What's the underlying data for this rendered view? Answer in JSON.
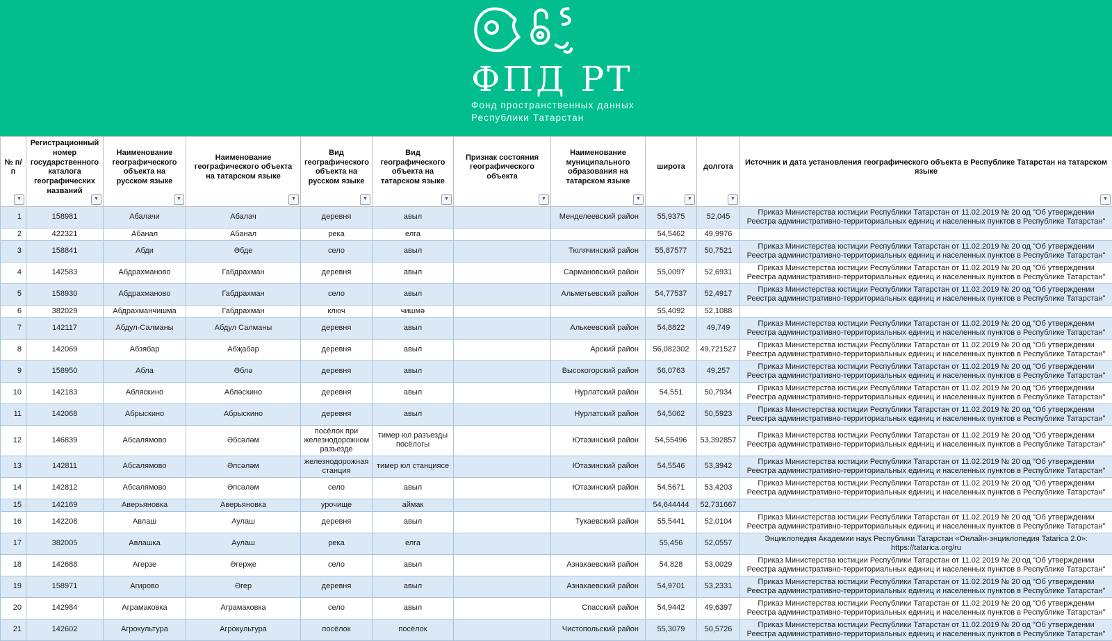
{
  "banner": {
    "background_color": "#02be8e",
    "logo_icon": "fpd-rt-logo",
    "title": "ФПД РТ",
    "subtitle_line1": "Фонд пространственных данных",
    "subtitle_line2": "Республики Татарстан"
  },
  "table": {
    "filter_icon": "▼",
    "banded_row_color": "#dbe8f6",
    "columns": [
      {
        "key": "num",
        "label": "№ п/п"
      },
      {
        "key": "reg-number",
        "label": "Регистрационный номер государственного каталога географических названий"
      },
      {
        "key": "name-ru",
        "label": "Наименование географического объекта на русском языке"
      },
      {
        "key": "name-tt",
        "label": "Наименование географического объекта на татарском языке"
      },
      {
        "key": "type-ru",
        "label": "Вид географического объекта на русском языке"
      },
      {
        "key": "type-tt",
        "label": "Вид географического объекта на татарском языке"
      },
      {
        "key": "status",
        "label": "Признак состояния географического объекта"
      },
      {
        "key": "municipality",
        "label": "Наименование муниципального образования на татарском языке"
      },
      {
        "key": "latitude",
        "label": "широта"
      },
      {
        "key": "longitude",
        "label": "долгота"
      },
      {
        "key": "source",
        "label": "Источник и дата установления географического объекта в Республике Татарстан на татарском языке"
      }
    ],
    "rows": [
      [
        "1",
        "158981",
        "Абалачи",
        "Абалач",
        "деревня",
        "авыл",
        "",
        "Менделеевский район",
        "55,9375",
        "52,045",
        "Приказ Министерства юстиции Республики Татарстан от 11.02.2019 № 20 од \"Об утверждении Реестра административно-территориальных единиц и населенных пунктов в Республике Татарстан\""
      ],
      [
        "2",
        "422321",
        "Абанал",
        "Абанал",
        "река",
        "елга",
        "",
        "",
        "54,5462",
        "49,9976",
        ""
      ],
      [
        "3",
        "158841",
        "Абди",
        "Әбде",
        "село",
        "авыл",
        "",
        "Тюлячинский район",
        "55,87577",
        "50,7521",
        "Приказ Министерства юстиции Республики Татарстан от 11.02.2019 № 20 од \"Об утверждении Реестра административно-территориальных единиц и населенных пунктов в Республике Татарстан\""
      ],
      [
        "4",
        "142583",
        "Абдрахманово",
        "Габдрахман",
        "деревня",
        "авыл",
        "",
        "Сармановский район",
        "55,0097",
        "52,6931",
        "Приказ Министерства юстиции Республики Татарстан от 11.02.2019 № 20 од \"Об утверждении Реестра административно-территориальных единиц и населенных пунктов в Республике Татарстан\""
      ],
      [
        "5",
        "158930",
        "Абдрахманово",
        "Габдрахман",
        "село",
        "авыл",
        "",
        "Альметьевский район",
        "54,77537",
        "52,4917",
        "Приказ Министерства юстиции Республики Татарстан от 11.02.2019 № 20 од \"Об утверждении Реестра административно-территориальных единиц и населенных пунктов в Республике Татарстан\""
      ],
      [
        "6",
        "382029",
        "Абдрахманчишма",
        "Габдрахман",
        "ключ",
        "чишмә",
        "",
        "",
        "55,4092",
        "52,1088",
        ""
      ],
      [
        "7",
        "142117",
        "Абдул-Салманы",
        "Абдул Салманы",
        "деревня",
        "авыл",
        "",
        "Алькеевский район",
        "54,8822",
        "49,749",
        "Приказ Министерства юстиции Республики Татарстан от 11.02.2019 № 20 од \"Об утверждении Реестра административно-территориальных единиц и населенных пунктов в Республике Татарстан\""
      ],
      [
        "8",
        "142069",
        "Абзябар",
        "Абҗабар",
        "деревня",
        "авыл",
        "",
        "Арский район",
        "56,082302",
        "49,721527",
        "Приказ Министерства юстиции Республики Татарстан от 11.02.2019 № 20 од \"Об утверждении Реестра административно-территориальных единиц и населенных пунктов в Республике Татарстан\""
      ],
      [
        "9",
        "158950",
        "Абла",
        "Әблә",
        "деревня",
        "авыл",
        "",
        "Высокогорский район",
        "56,0763",
        "49,257",
        "Приказ Министерства юстиции Республики Татарстан от 11.02.2019 № 20 од \"Об утверждении Реестра административно-территориальных единиц и населенных пунктов в Республике Татарстан\""
      ],
      [
        "10",
        "142183",
        "Абляскино",
        "Абләскино",
        "деревня",
        "авыл",
        "",
        "Нурлатский район",
        "54,551",
        "50,7934",
        "Приказ Министерства юстиции Республики Татарстан от 11.02.2019 № 20 од \"Об утверждении Реестра административно-территориальных единиц и населенных пунктов в Республике Татарстан\""
      ],
      [
        "11",
        "142068",
        "Абрыскино",
        "Абрыскино",
        "деревня",
        "авыл",
        "",
        "Нурлатский район",
        "54,5062",
        "50,5923",
        "Приказ Министерства юстиции Республики Татарстан от 11.02.2019 № 20 од \"Об утверждении Реестра административно-территориальных единиц и населенных пунктов в Республике Татарстан\""
      ],
      [
        "12",
        "146839",
        "Абсалямово",
        "Әбсәләм",
        "посёлок при железнодорожном разъезде",
        "тимер юл разъезды посёлогы",
        "",
        "Ютазинский район",
        "54,55496",
        "53,392857",
        "Приказ Министерства юстиции Республики Татарстан от 11.02.2019 № 20 од \"Об утверждении Реестра административно-территориальных единиц и населенных пунктов в Республике Татарстан\""
      ],
      [
        "13",
        "142811",
        "Абсалямово",
        "Әпсәләм",
        "железнодорожная станция",
        "тимер юл станциясе",
        "",
        "Ютазинский район",
        "54,5546",
        "53,3942",
        "Приказ Министерства юстиции Республики Татарстан от 11.02.2019 № 20 од \"Об утверждении Реестра административно-территориальных единиц и населенных пунктов в Республике Татарстан\""
      ],
      [
        "14",
        "142812",
        "Абсалямово",
        "Әпсәләм",
        "село",
        "авыл",
        "",
        "Ютазинский район",
        "54,5671",
        "53,4203",
        "Приказ Министерства юстиции Республики Татарстан от 11.02.2019 № 20 од \"Об утверждении Реестра административно-территориальных единиц и населенных пунктов в Республике Татарстан\""
      ],
      [
        "15",
        "142169",
        "Аверьяновка",
        "Аверьяновка",
        "урочище",
        "аймак",
        "",
        "",
        "54,644444",
        "52,731667",
        ""
      ],
      [
        "16",
        "142208",
        "Авлаш",
        "Аулаш",
        "деревня",
        "авыл",
        "",
        "Тукаевский район",
        "55,5441",
        "52,0104",
        "Приказ Министерства юстиции Республики Татарстан от 11.02.2019 № 20 од \"Об утверждении Реестра административно-территориальных единиц и населенных пунктов в Республике Татарстан\""
      ],
      [
        "17",
        "382005",
        "Авлашка",
        "Аулаш",
        "река",
        "елга",
        "",
        "",
        "55,456",
        "52,0557",
        "Энциклопедия Академии наук Республики Татарстан «Онлайн-энциклопедия Tatarica 2.0»: https://tatarica.org/ru"
      ],
      [
        "18",
        "142688",
        "Агерзе",
        "Әгерҗе",
        "село",
        "авыл",
        "",
        "Азнакаевский район",
        "54,828",
        "53,0029",
        "Приказ Министерства юстиции Республики Татарстан от 11.02.2019 № 20 од \"Об утверждении Реестра административно-территориальных единиц и населенных пунктов в Республике Татарстан\""
      ],
      [
        "19",
        "158971",
        "Агирово",
        "Әгер",
        "деревня",
        "авыл",
        "",
        "Азнакаевский район",
        "54,9701",
        "53,2331",
        "Приказ Министерства юстиции Республики Татарстан от 11.02.2019 № 20 од \"Об утверждении Реестра административно-территориальных единиц и населенных пунктов в Республике Татарстан\""
      ],
      [
        "20",
        "142984",
        "Аграмаковка",
        "Аграмаковка",
        "село",
        "авыл",
        "",
        "Спасский район",
        "54,9442",
        "49,6397",
        "Приказ Министерства юстиции Республики Татарстан от 11.02.2019 № 20 од \"Об утверждении Реестра административно-территориальных единиц и населенных пунктов в Республике Татарстан\""
      ],
      [
        "21",
        "142602",
        "Агрокультура",
        "Агрокультура",
        "посёлок",
        "посёлок",
        "",
        "Чистопольский район",
        "55,3079",
        "50,5726",
        "Приказ Министерства юстиции Республики Татарстан от 11.02.2019 № 20 од \"Об утверждении Реестра административно-территориальных единиц и населенных пунктов в Республике Татарстан\""
      ]
    ]
  }
}
